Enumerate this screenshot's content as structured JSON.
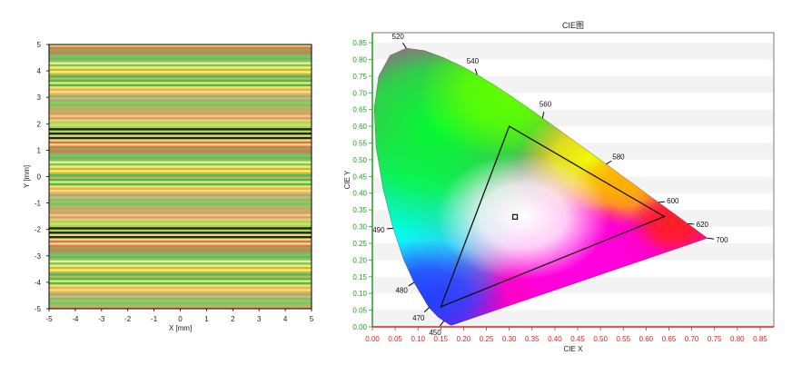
{
  "chart_data": [
    {
      "type": "heatmap",
      "title": "",
      "xlabel": "X [mm]",
      "ylabel": "Y [mm]",
      "xlim": [
        -5,
        5
      ],
      "ylim": [
        -5,
        5
      ],
      "x_ticks": [
        -5,
        -4,
        -3,
        -2,
        -1,
        0,
        1,
        2,
        3,
        4,
        5
      ],
      "y_ticks": [
        -5,
        -4,
        -3,
        -2,
        -1,
        0,
        1,
        2,
        3,
        4,
        5
      ],
      "grid": false,
      "stripe_colors": [
        "#e8e070",
        "#a8d850",
        "#f09070",
        "#80c070",
        "#f0e850",
        "#c8b840",
        "#70c880",
        "#e07060",
        "#202818",
        "#d8d878",
        "#98c858",
        "#f0a878",
        "#48b870",
        "#f8f068",
        "#88b048"
      ]
    },
    {
      "type": "scatter",
      "title": "CIE图",
      "xlabel": "CIE X",
      "ylabel": "CIE Y",
      "xlim": [
        0,
        0.88
      ],
      "ylim": [
        0,
        0.88
      ],
      "x_ticks": [
        "0.00",
        "0.05",
        "0.10",
        "0.15",
        "0.20",
        "0.25",
        "0.30",
        "0.35",
        "0.40",
        "0.45",
        "0.50",
        "0.55",
        "0.60",
        "0.65",
        "0.70",
        "0.75",
        "0.80",
        "0.85"
      ],
      "y_ticks": [
        "0.00",
        "0.05",
        "0.10",
        "0.15",
        "0.20",
        "0.25",
        "0.30",
        "0.35",
        "0.40",
        "0.45",
        "0.50",
        "0.55",
        "0.60",
        "0.65",
        "0.70",
        "0.75",
        "0.80",
        "0.85"
      ],
      "wavelength_labels": [
        {
          "label": "520",
          "x": 0.0743,
          "y": 0.8338
        },
        {
          "label": "540",
          "x": 0.2296,
          "y": 0.7543
        },
        {
          "label": "560",
          "x": 0.3731,
          "y": 0.6245
        },
        {
          "label": "580",
          "x": 0.5125,
          "y": 0.4866
        },
        {
          "label": "600",
          "x": 0.627,
          "y": 0.3725
        },
        {
          "label": "620",
          "x": 0.6915,
          "y": 0.3083
        },
        {
          "label": "700",
          "x": 0.7347,
          "y": 0.2653
        },
        {
          "label": "490",
          "x": 0.0454,
          "y": 0.295
        },
        {
          "label": "480",
          "x": 0.0913,
          "y": 0.1327
        },
        {
          "label": "470",
          "x": 0.1241,
          "y": 0.0578
        },
        {
          "label": "450",
          "x": 0.1566,
          "y": 0.0177
        }
      ],
      "gamut_triangle": [
        [
          0.64,
          0.33
        ],
        [
          0.3,
          0.6
        ],
        [
          0.15,
          0.06
        ]
      ],
      "white_point": {
        "x": 0.3127,
        "y": 0.329
      },
      "axis_colors": {
        "x": "#e02020",
        "y": "#20a020"
      }
    }
  ]
}
